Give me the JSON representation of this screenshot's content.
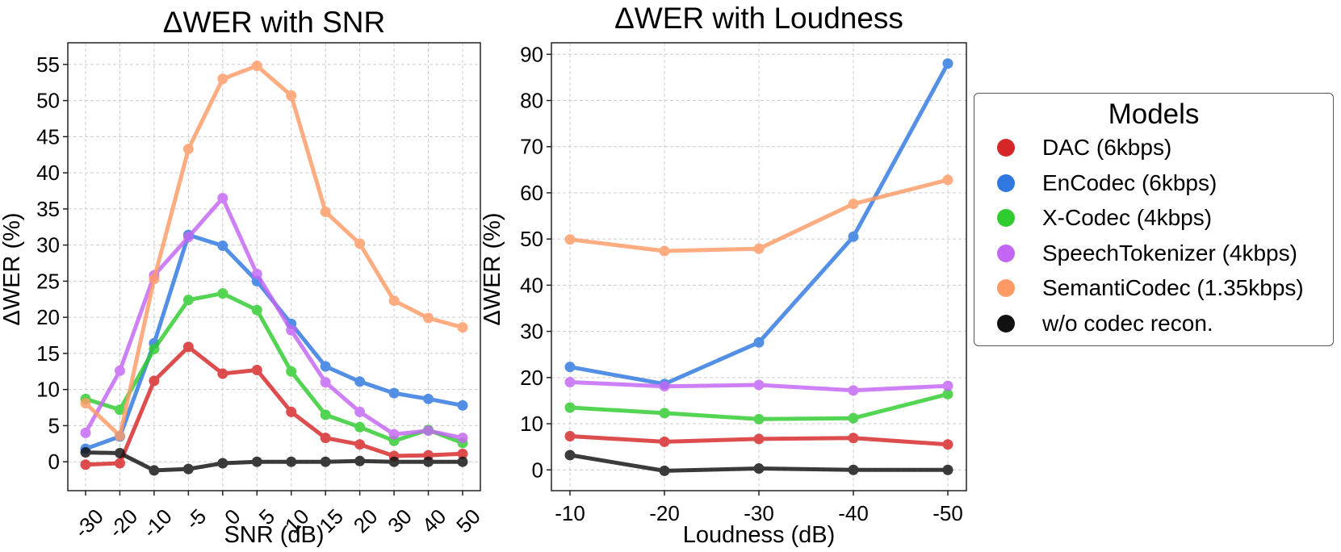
{
  "chart_data": [
    {
      "type": "line",
      "title": "ΔWER with SNR",
      "xlabel": "SNR (dB)",
      "ylabel": "ΔWER (%)",
      "categories": [
        "-30",
        "-20",
        "-10",
        "-5",
        "0",
        "5",
        "10",
        "15",
        "20",
        "30",
        "40",
        "50"
      ],
      "yticks": [
        0,
        5,
        10,
        15,
        20,
        25,
        30,
        35,
        40,
        45,
        50,
        55
      ],
      "ylim": [
        -4,
        58
      ],
      "grid": true,
      "series": [
        {
          "name": "DAC (6kbps)",
          "color": "#d62728",
          "values": [
            -0.4,
            -0.2,
            11.2,
            15.9,
            12.2,
            12.7,
            6.9,
            3.3,
            2.4,
            0.8,
            0.9,
            1.1
          ]
        },
        {
          "name": "EnCodec (6kbps)",
          "color": "#2e78e0",
          "values": [
            1.8,
            3.5,
            16.4,
            31.4,
            29.9,
            25.0,
            19.1,
            13.2,
            11.1,
            9.5,
            8.7,
            7.8
          ]
        },
        {
          "name": "X-Codec (4kbps)",
          "color": "#2ecc2e",
          "values": [
            8.7,
            7.2,
            15.6,
            22.4,
            23.3,
            21.0,
            12.5,
            6.5,
            4.8,
            2.9,
            4.4,
            2.6
          ]
        },
        {
          "name": "SpeechTokenizer (4kbps)",
          "color": "#c466f5",
          "values": [
            4.0,
            12.6,
            25.8,
            31.1,
            36.5,
            26.0,
            18.2,
            11.0,
            6.9,
            3.8,
            4.3,
            3.3
          ]
        },
        {
          "name": "SemantiCodec (1.35kbps)",
          "color": "#ff9a66",
          "values": [
            8.1,
            3.6,
            25.3,
            43.3,
            53.0,
            54.8,
            50.7,
            34.6,
            30.2,
            22.3,
            19.9,
            18.6
          ]
        },
        {
          "name": "w/o codec recon.",
          "color": "#111111",
          "values": [
            1.3,
            1.2,
            -1.2,
            -1.0,
            -0.2,
            0.0,
            0.0,
            0.0,
            0.1,
            0.0,
            0.0,
            0.0
          ]
        }
      ]
    },
    {
      "type": "line",
      "title": "ΔWER with Loudness",
      "xlabel": "Loudness (dB)",
      "ylabel": "ΔWER (%)",
      "categories": [
        "-10",
        "-20",
        "-30",
        "-40",
        "-50"
      ],
      "yticks": [
        0,
        10,
        20,
        30,
        40,
        50,
        60,
        70,
        80,
        90
      ],
      "ylim": [
        -4.5,
        92.5
      ],
      "grid": true,
      "series": [
        {
          "name": "DAC (6kbps)",
          "color": "#d62728",
          "values": [
            7.3,
            6.1,
            6.7,
            6.9,
            5.5
          ]
        },
        {
          "name": "EnCodec (6kbps)",
          "color": "#2e78e0",
          "values": [
            22.3,
            18.6,
            27.6,
            50.5,
            88.0
          ]
        },
        {
          "name": "X-Codec (4kbps)",
          "color": "#2ecc2e",
          "values": [
            13.5,
            12.3,
            11.0,
            11.2,
            16.4
          ]
        },
        {
          "name": "SpeechTokenizer (4kbps)",
          "color": "#c466f5",
          "values": [
            19.0,
            18.1,
            18.4,
            17.2,
            18.2
          ]
        },
        {
          "name": "SemantiCodec (1.35kbps)",
          "color": "#ff9a66",
          "values": [
            49.9,
            47.4,
            47.9,
            57.6,
            62.8
          ]
        },
        {
          "name": "w/o codec recon.",
          "color": "#111111",
          "values": [
            3.2,
            -0.2,
            0.3,
            0.0,
            0.0
          ]
        }
      ]
    }
  ],
  "legend": {
    "title": "Models",
    "items": [
      {
        "label": "DAC (6kbps)",
        "color": "#d62728"
      },
      {
        "label": "EnCodec (6kbps)",
        "color": "#2e78e0"
      },
      {
        "label": "X-Codec (4kbps)",
        "color": "#2ecc2e"
      },
      {
        "label": "SpeechTokenizer (4kbps)",
        "color": "#c466f5"
      },
      {
        "label": "SemantiCodec (1.35kbps)",
        "color": "#ff9a66"
      },
      {
        "label": "w/o codec recon.",
        "color": "#111111"
      }
    ]
  }
}
